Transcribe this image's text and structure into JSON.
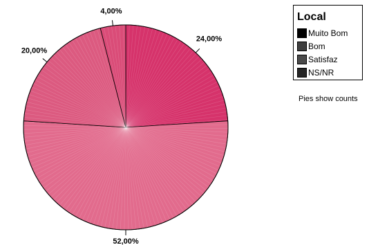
{
  "chart_data": {
    "type": "pie",
    "categories": [
      "Muito Bom",
      "Bom",
      "Satisfaz",
      "NS/NR"
    ],
    "values": [
      24,
      52,
      20,
      4
    ],
    "value_labels": [
      "24,00%",
      "52,00%",
      "20,00%",
      "4,00%"
    ],
    "slice_colors": [
      "#d6336b",
      "#e26b8d",
      "#dc5a80",
      "#da4c78"
    ],
    "legend": {
      "title": "Local",
      "placement": "top-right",
      "swatch_colors": [
        "#000000",
        "#3f3f3f",
        "#4a4a4a",
        "#262626"
      ]
    },
    "note": "Pies show counts"
  }
}
